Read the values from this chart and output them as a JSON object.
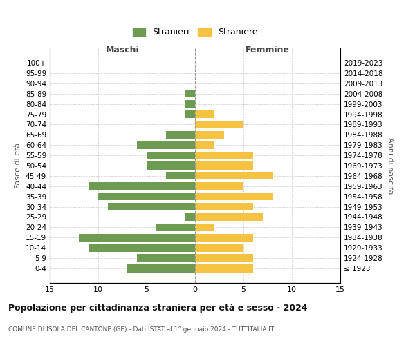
{
  "age_groups": [
    "100+",
    "95-99",
    "90-94",
    "85-89",
    "80-84",
    "75-79",
    "70-74",
    "65-69",
    "60-64",
    "55-59",
    "50-54",
    "45-49",
    "40-44",
    "35-39",
    "30-34",
    "25-29",
    "20-24",
    "15-19",
    "10-14",
    "5-9",
    "0-4"
  ],
  "birth_years": [
    "≤ 1923",
    "1924-1928",
    "1929-1933",
    "1934-1938",
    "1939-1943",
    "1944-1948",
    "1949-1953",
    "1954-1958",
    "1959-1963",
    "1964-1968",
    "1969-1973",
    "1974-1978",
    "1979-1983",
    "1984-1988",
    "1989-1993",
    "1994-1998",
    "1999-2003",
    "2004-2008",
    "2009-2013",
    "2014-2018",
    "2019-2023"
  ],
  "males": [
    0,
    0,
    0,
    1,
    1,
    1,
    0,
    3,
    6,
    5,
    5,
    3,
    11,
    10,
    9,
    1,
    4,
    12,
    11,
    6,
    7
  ],
  "females": [
    0,
    0,
    0,
    0,
    0,
    2,
    5,
    3,
    2,
    6,
    6,
    8,
    5,
    8,
    6,
    7,
    2,
    6,
    5,
    6,
    6
  ],
  "male_color": "#6d9b52",
  "female_color": "#f5c242",
  "background_color": "#ffffff",
  "grid_color": "#cccccc",
  "title": "Popolazione per cittadinanza straniera per età e sesso - 2024",
  "subtitle": "COMUNE DI ISOLA DEL CANTONE (GE) - Dati ISTAT al 1° gennaio 2024 - TUTTITALIA.IT",
  "xlabel_left": "Maschi",
  "xlabel_right": "Femmine",
  "ylabel_left": "Fasce di età",
  "ylabel_right": "Anni di nascita",
  "legend_male": "Stranieri",
  "legend_female": "Straniere",
  "xlim": 15
}
